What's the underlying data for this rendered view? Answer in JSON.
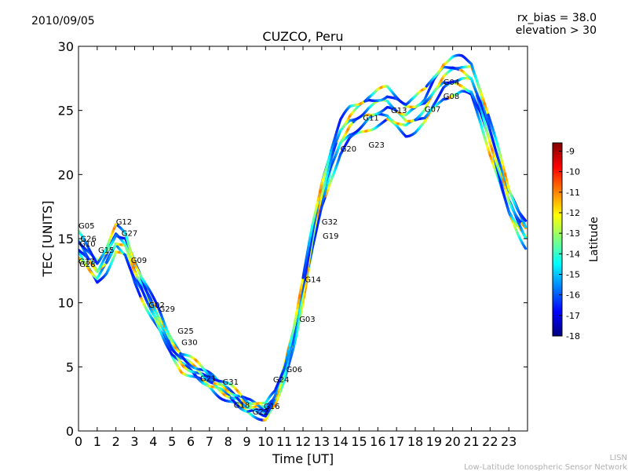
{
  "header": {
    "date": "2010/09/05",
    "rx_bias": "rx_bias = 38.0",
    "elevation": "elevation > 30"
  },
  "footer": {
    "line1": "LISN",
    "line2": "Low-Latitude Ionospheric Sensor Network"
  },
  "chart_data": {
    "type": "scatter",
    "title": "CUZCO, Peru",
    "xlabel": "Time [UT]",
    "ylabel": "TEC [UNITS]",
    "xlim": [
      0,
      24
    ],
    "ylim": [
      0,
      30
    ],
    "xticks": [
      "0",
      "1",
      "2",
      "3",
      "4",
      "5",
      "6",
      "7",
      "8",
      "9",
      "10",
      "11",
      "12",
      "13",
      "14",
      "15",
      "16",
      "17",
      "18",
      "19",
      "20",
      "21",
      "22",
      "23"
    ],
    "yticks": [
      "0",
      "5",
      "10",
      "15",
      "20",
      "25",
      "30"
    ],
    "colorbar": {
      "label": "Latitude",
      "range": [
        -18,
        -8.6
      ],
      "ticks": [
        "-9",
        "-10",
        "-11",
        "-12",
        "-13",
        "-14",
        "-15",
        "-16",
        "-17",
        "-18"
      ],
      "colormap": [
        "#00007f",
        "#0000ff",
        "#007fff",
        "#00ffff",
        "#7fff7f",
        "#ffff00",
        "#ff7f00",
        "#ff0000",
        "#7f0000"
      ]
    },
    "tec_trend": {
      "x": [
        0,
        0.5,
        1.0,
        1.5,
        2.0,
        2.5,
        3.0,
        3.5,
        4.0,
        4.5,
        5.0,
        5.5,
        6.0,
        6.5,
        7.0,
        7.5,
        8.0,
        8.5,
        9.0,
        9.5,
        10.0,
        10.5,
        11.0,
        11.5,
        12.0,
        12.5,
        13.0,
        13.5,
        14.0,
        14.5,
        15.0,
        15.5,
        16.0,
        16.5,
        17.0,
        17.5,
        18.0,
        18.5,
        19.0,
        19.5,
        20.0,
        20.5,
        21.0,
        21.5,
        22.0,
        22.5,
        23.0,
        23.5,
        23.9
      ],
      "y": [
        14.5,
        13.5,
        12.5,
        13.5,
        15.0,
        14.5,
        12.5,
        11.0,
        9.5,
        8.0,
        6.5,
        5.5,
        5.0,
        4.5,
        4.0,
        3.5,
        3.0,
        2.5,
        2.0,
        1.8,
        1.5,
        2.5,
        4.5,
        7.5,
        11.0,
        15.0,
        18.5,
        21.0,
        23.0,
        24.0,
        24.5,
        25.0,
        25.3,
        25.5,
        25.0,
        24.5,
        24.8,
        25.3,
        26.5,
        27.5,
        27.8,
        27.8,
        27.5,
        25.5,
        23.0,
        20.5,
        18.0,
        16.5,
        15.5
      ]
    },
    "prn_labels": [
      {
        "text": "G05",
        "x": 0.0,
        "y": 15.8
      },
      {
        "text": "G26",
        "x": 0.1,
        "y": 14.8
      },
      {
        "text": "G10",
        "x": 0.05,
        "y": 14.4
      },
      {
        "text": "G17",
        "x": 0.0,
        "y": 13.0
      },
      {
        "text": "G28",
        "x": 0.05,
        "y": 12.8
      },
      {
        "text": "G12",
        "x": 2.0,
        "y": 16.1
      },
      {
        "text": "G27",
        "x": 2.3,
        "y": 15.2
      },
      {
        "text": "G15",
        "x": 1.05,
        "y": 13.9
      },
      {
        "text": "G09",
        "x": 2.8,
        "y": 13.1
      },
      {
        "text": "G02",
        "x": 3.75,
        "y": 9.6
      },
      {
        "text": "G29",
        "x": 4.3,
        "y": 9.3
      },
      {
        "text": "G25",
        "x": 5.3,
        "y": 7.6
      },
      {
        "text": "G30",
        "x": 5.5,
        "y": 6.7
      },
      {
        "text": "G21",
        "x": 6.5,
        "y": 3.9
      },
      {
        "text": "G31",
        "x": 7.7,
        "y": 3.6
      },
      {
        "text": "G18",
        "x": 8.3,
        "y": 1.8
      },
      {
        "text": "G22",
        "x": 9.3,
        "y": 1.3
      },
      {
        "text": "G16",
        "x": 9.9,
        "y": 1.7
      },
      {
        "text": "G24",
        "x": 10.4,
        "y": 3.8
      },
      {
        "text": "G06",
        "x": 11.1,
        "y": 4.6
      },
      {
        "text": "G03",
        "x": 11.8,
        "y": 8.5
      },
      {
        "text": "G14",
        "x": 12.1,
        "y": 11.6
      },
      {
        "text": "G32",
        "x": 13.0,
        "y": 16.1
      },
      {
        "text": "G19",
        "x": 13.05,
        "y": 15.0
      },
      {
        "text": "G20",
        "x": 14.0,
        "y": 21.8
      },
      {
        "text": "G23",
        "x": 15.5,
        "y": 22.1
      },
      {
        "text": "G11",
        "x": 15.2,
        "y": 24.2
      },
      {
        "text": "G13",
        "x": 16.7,
        "y": 24.8
      },
      {
        "text": "G07",
        "x": 18.5,
        "y": 24.9
      },
      {
        "text": "G08",
        "x": 19.5,
        "y": 25.9
      },
      {
        "text": "G04",
        "x": 19.5,
        "y": 27.0
      }
    ]
  }
}
